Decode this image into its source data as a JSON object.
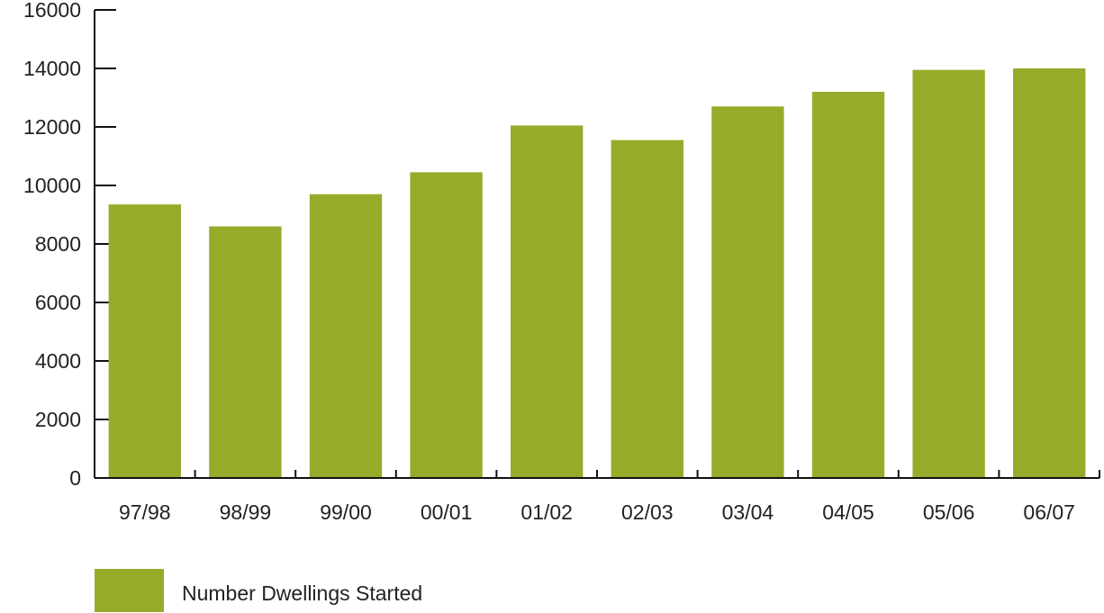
{
  "chart_data": {
    "type": "bar",
    "categories": [
      "97/98",
      "98/99",
      "99/00",
      "00/01",
      "01/02",
      "02/03",
      "03/04",
      "04/05",
      "05/06",
      "06/07"
    ],
    "series": [
      {
        "name": "Number Dwellings Started",
        "values": [
          9350,
          8600,
          9700,
          10450,
          12050,
          11550,
          12700,
          13200,
          13950,
          14000
        ]
      }
    ],
    "ylim": [
      0,
      16000
    ],
    "yticks": [
      0,
      2000,
      4000,
      6000,
      8000,
      10000,
      12000,
      14000,
      16000
    ],
    "grid": false,
    "legend_position": "bottom-left",
    "colors": {
      "bar": "#97ab2b",
      "axis": "#111111",
      "text": "#222222"
    }
  }
}
